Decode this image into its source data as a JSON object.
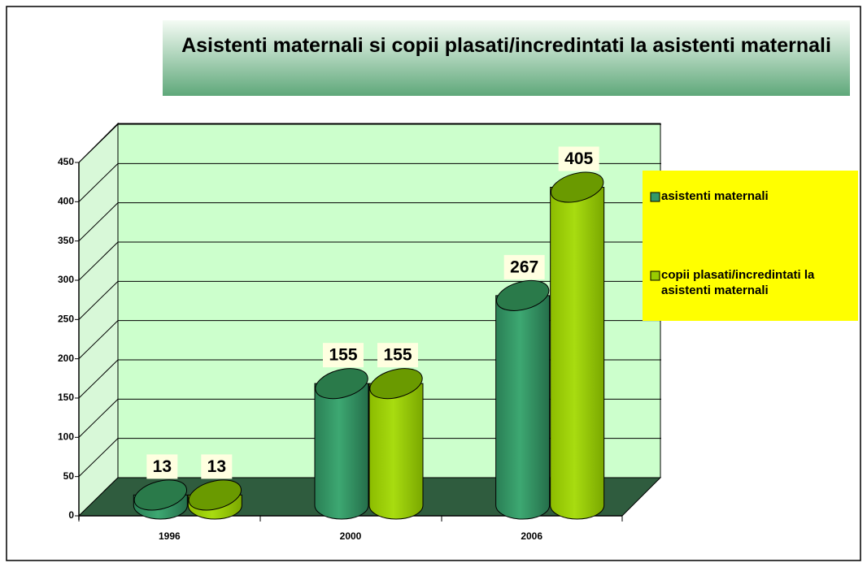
{
  "chart_data": {
    "type": "bar",
    "title": "Asistenti maternali si copii plasati/incredintati la asistenti maternali",
    "categories": [
      "1996",
      "2000",
      "2006"
    ],
    "series": [
      {
        "name": "asistenti maternali",
        "color": "#339966",
        "values": [
          13,
          155,
          267
        ]
      },
      {
        "name": "copii plasati/incredintati la asistenti maternali",
        "color": "#99cc00",
        "values": [
          13,
          155,
          405
        ]
      }
    ],
    "ylim": [
      0,
      450
    ],
    "yticks": [
      0,
      50,
      100,
      150,
      200,
      250,
      300,
      350,
      400,
      450
    ],
    "grid": true,
    "legend": "right"
  }
}
